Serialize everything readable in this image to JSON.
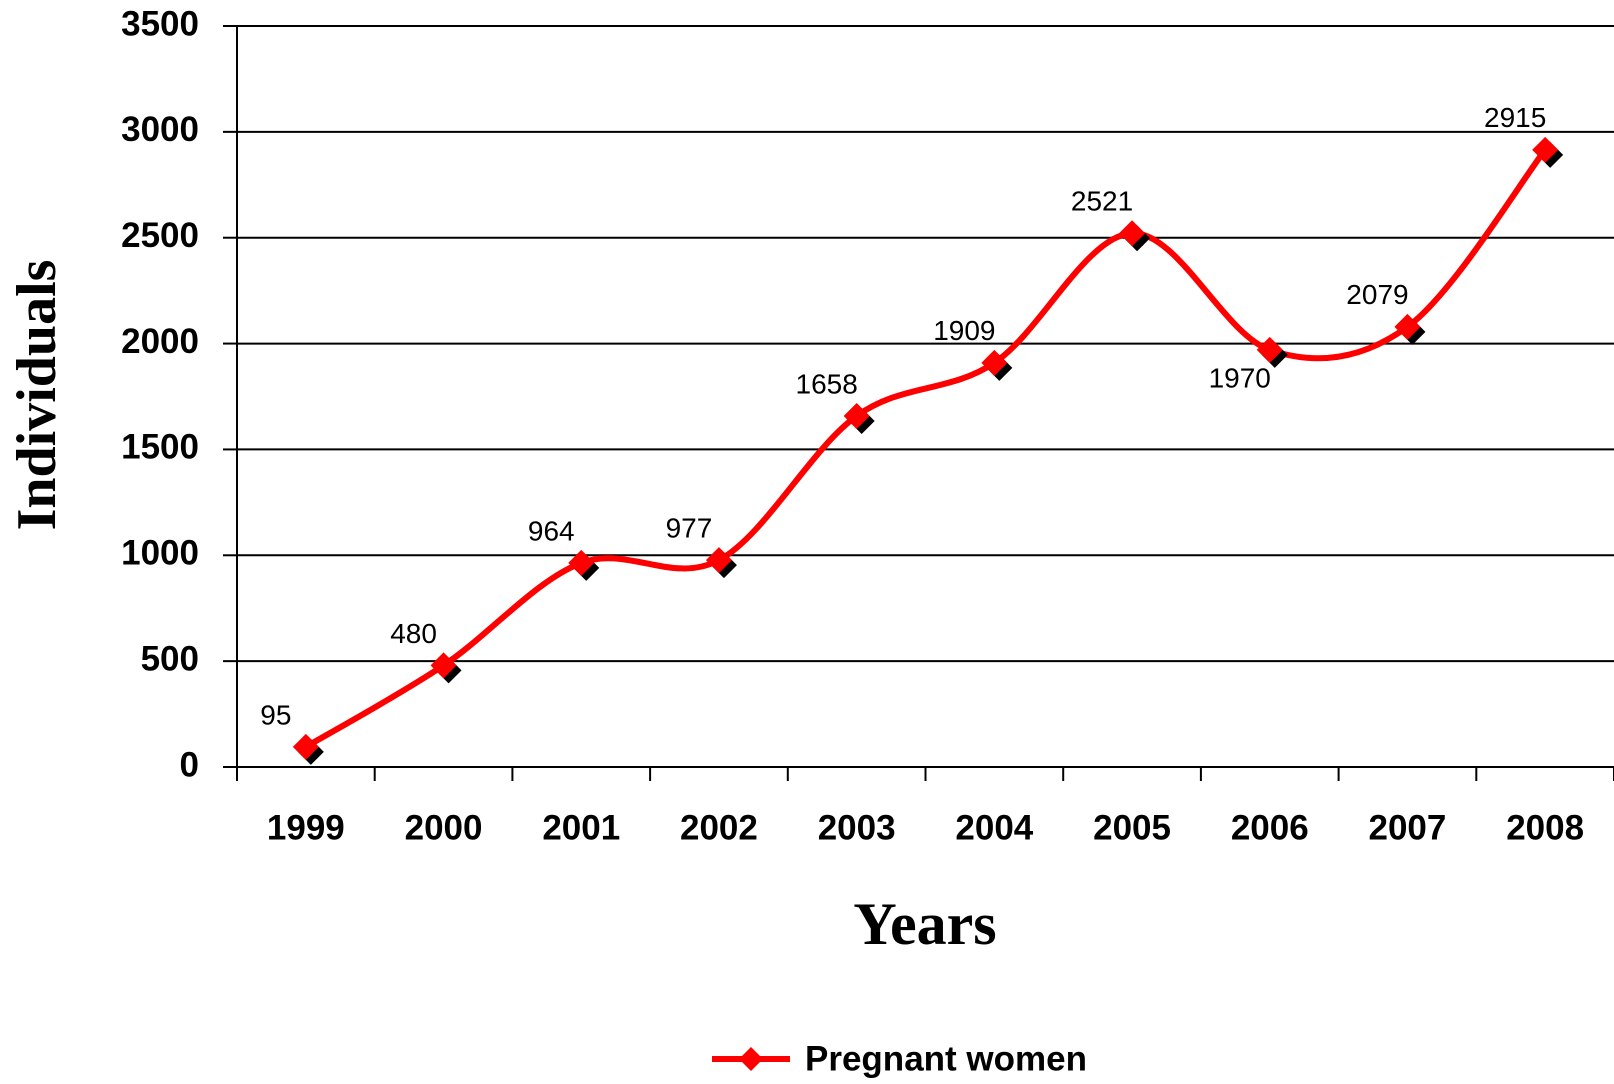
{
  "chart_data": {
    "type": "line",
    "xlabel": "Years",
    "ylabel": "Individuals",
    "categories": [
      "1999",
      "2000",
      "2001",
      "2002",
      "2003",
      "2004",
      "2005",
      "2006",
      "2007",
      "2008"
    ],
    "series": [
      {
        "name": "Pregnant women",
        "color": "#ff0000",
        "values": [
          95,
          480,
          964,
          977,
          1658,
          1909,
          2521,
          1970,
          2079,
          2915
        ]
      }
    ],
    "ylim": [
      0,
      3500
    ],
    "yticks": [
      0,
      500,
      1000,
      1500,
      2000,
      2500,
      3000,
      3500
    ],
    "grid": true,
    "smooth": true,
    "legend": "bottom"
  }
}
